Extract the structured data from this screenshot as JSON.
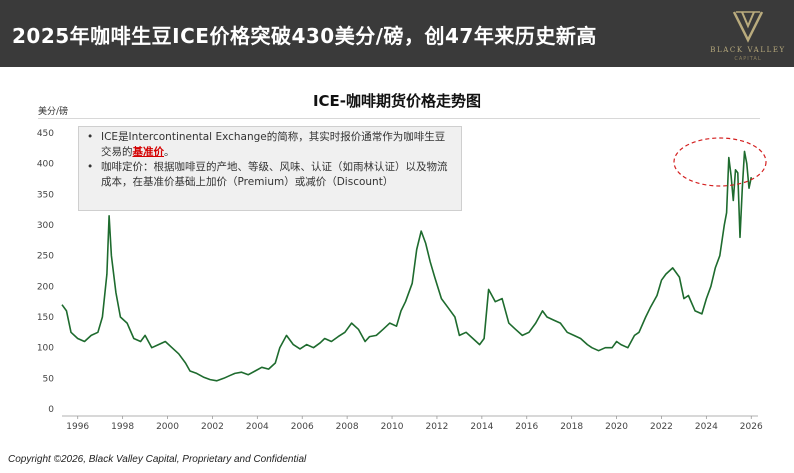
{
  "header": {
    "title": "2025年咖啡生豆ICE价格突破430美分/磅，创47年来历史新高",
    "logo_text": "BLACK VALLEY",
    "logo_sub": "CAPITAL"
  },
  "annotation": {
    "bullet1_text": "ICE是Intercontinental Exchange的简称，其实时报价通常作为咖啡生豆交易的",
    "bullet1_emphasis": "基准价",
    "bullet1_end": "。",
    "bullet2_text": "咖啡定价：根据咖啡豆的产地、等级、风味、认证（如雨林认证）以及物流成本，在基准价基础上加价（Premium）或减价（Discount）"
  },
  "footer": {
    "copyright": "Copyright ©2026, Black Valley Capital, Proprietary and Confidential"
  },
  "colors": {
    "header_bg": "#3a3a3a",
    "line": "#1e6b2e",
    "highlight": "#d42020",
    "emphasis": "#d40000",
    "logo": "#b9ab7d"
  },
  "chart_data": {
    "type": "line",
    "title": "ICE-咖啡期货价格走势图",
    "ylabel": "美分/磅",
    "xlabel": "",
    "xlim": [
      1995.3,
      2026.3
    ],
    "ylim": [
      0,
      450
    ],
    "yticks": [
      0,
      50,
      100,
      150,
      200,
      250,
      300,
      350,
      400,
      450
    ],
    "xticks": [
      "1996",
      "1998",
      "2000",
      "2002",
      "2004",
      "2006",
      "2008",
      "2010",
      "2012",
      "2014",
      "2016",
      "2018",
      "2020",
      "2022",
      "2024",
      "2026"
    ],
    "grid": false,
    "series": [
      {
        "x": [
          1995.3,
          1995.5,
          1995.7,
          1996.0,
          1996.3,
          1996.6,
          1996.9,
          1997.1,
          1997.3,
          1997.4,
          1997.5,
          1997.7,
          1997.9,
          1998.2,
          1998.5,
          1998.8,
          1999.0,
          1999.3,
          1999.6,
          1999.9,
          2000.2,
          2000.5,
          2000.8,
          2001.0,
          2001.3,
          2001.6,
          2001.9,
          2002.2,
          2002.5,
          2002.8,
          2003.0,
          2003.3,
          2003.6,
          2003.9,
          2004.2,
          2004.5,
          2004.8,
          2005.0,
          2005.3,
          2005.6,
          2005.9,
          2006.2,
          2006.5,
          2006.8,
          2007.0,
          2007.3,
          2007.6,
          2007.9,
          2008.2,
          2008.5,
          2008.8,
          2009.0,
          2009.3,
          2009.6,
          2009.9,
          2010.2,
          2010.4,
          2010.6,
          2010.9,
          2011.1,
          2011.3,
          2011.5,
          2011.7,
          2011.9,
          2012.2,
          2012.5,
          2012.8,
          2013.0,
          2013.3,
          2013.6,
          2013.9,
          2014.1,
          2014.3,
          2014.6,
          2014.9,
          2015.2,
          2015.5,
          2015.8,
          2016.1,
          2016.4,
          2016.7,
          2016.9,
          2017.2,
          2017.5,
          2017.8,
          2018.1,
          2018.4,
          2018.7,
          2018.9,
          2019.2,
          2019.5,
          2019.8,
          2020.0,
          2020.2,
          2020.5,
          2020.8,
          2021.0,
          2021.3,
          2021.5,
          2021.8,
          2022.0,
          2022.2,
          2022.5,
          2022.8,
          2023.0,
          2023.2,
          2023.5,
          2023.8,
          2024.0,
          2024.2,
          2024.4,
          2024.6,
          2024.8,
          2024.9,
          2025.0,
          2025.1,
          2025.2,
          2025.3,
          2025.4,
          2025.5,
          2025.6,
          2025.7,
          2025.8,
          2025.9,
          2026.0
        ],
        "values": [
          170,
          160,
          125,
          115,
          110,
          120,
          125,
          150,
          220,
          315,
          250,
          190,
          150,
          140,
          115,
          110,
          120,
          100,
          105,
          110,
          100,
          90,
          75,
          62,
          58,
          52,
          48,
          46,
          50,
          55,
          58,
          60,
          56,
          62,
          68,
          65,
          75,
          100,
          120,
          105,
          98,
          105,
          100,
          108,
          115,
          110,
          118,
          125,
          140,
          130,
          110,
          118,
          120,
          130,
          140,
          135,
          160,
          175,
          205,
          260,
          290,
          270,
          240,
          215,
          180,
          165,
          150,
          120,
          125,
          115,
          105,
          115,
          195,
          175,
          180,
          140,
          130,
          120,
          125,
          140,
          160,
          150,
          145,
          140,
          125,
          120,
          115,
          105,
          100,
          95,
          100,
          100,
          110,
          105,
          100,
          120,
          125,
          150,
          165,
          185,
          210,
          220,
          230,
          215,
          180,
          185,
          160,
          155,
          180,
          200,
          230,
          250,
          300,
          320,
          410,
          380,
          340,
          390,
          385,
          280,
          360,
          420,
          400,
          360,
          378
        ]
      }
    ]
  }
}
